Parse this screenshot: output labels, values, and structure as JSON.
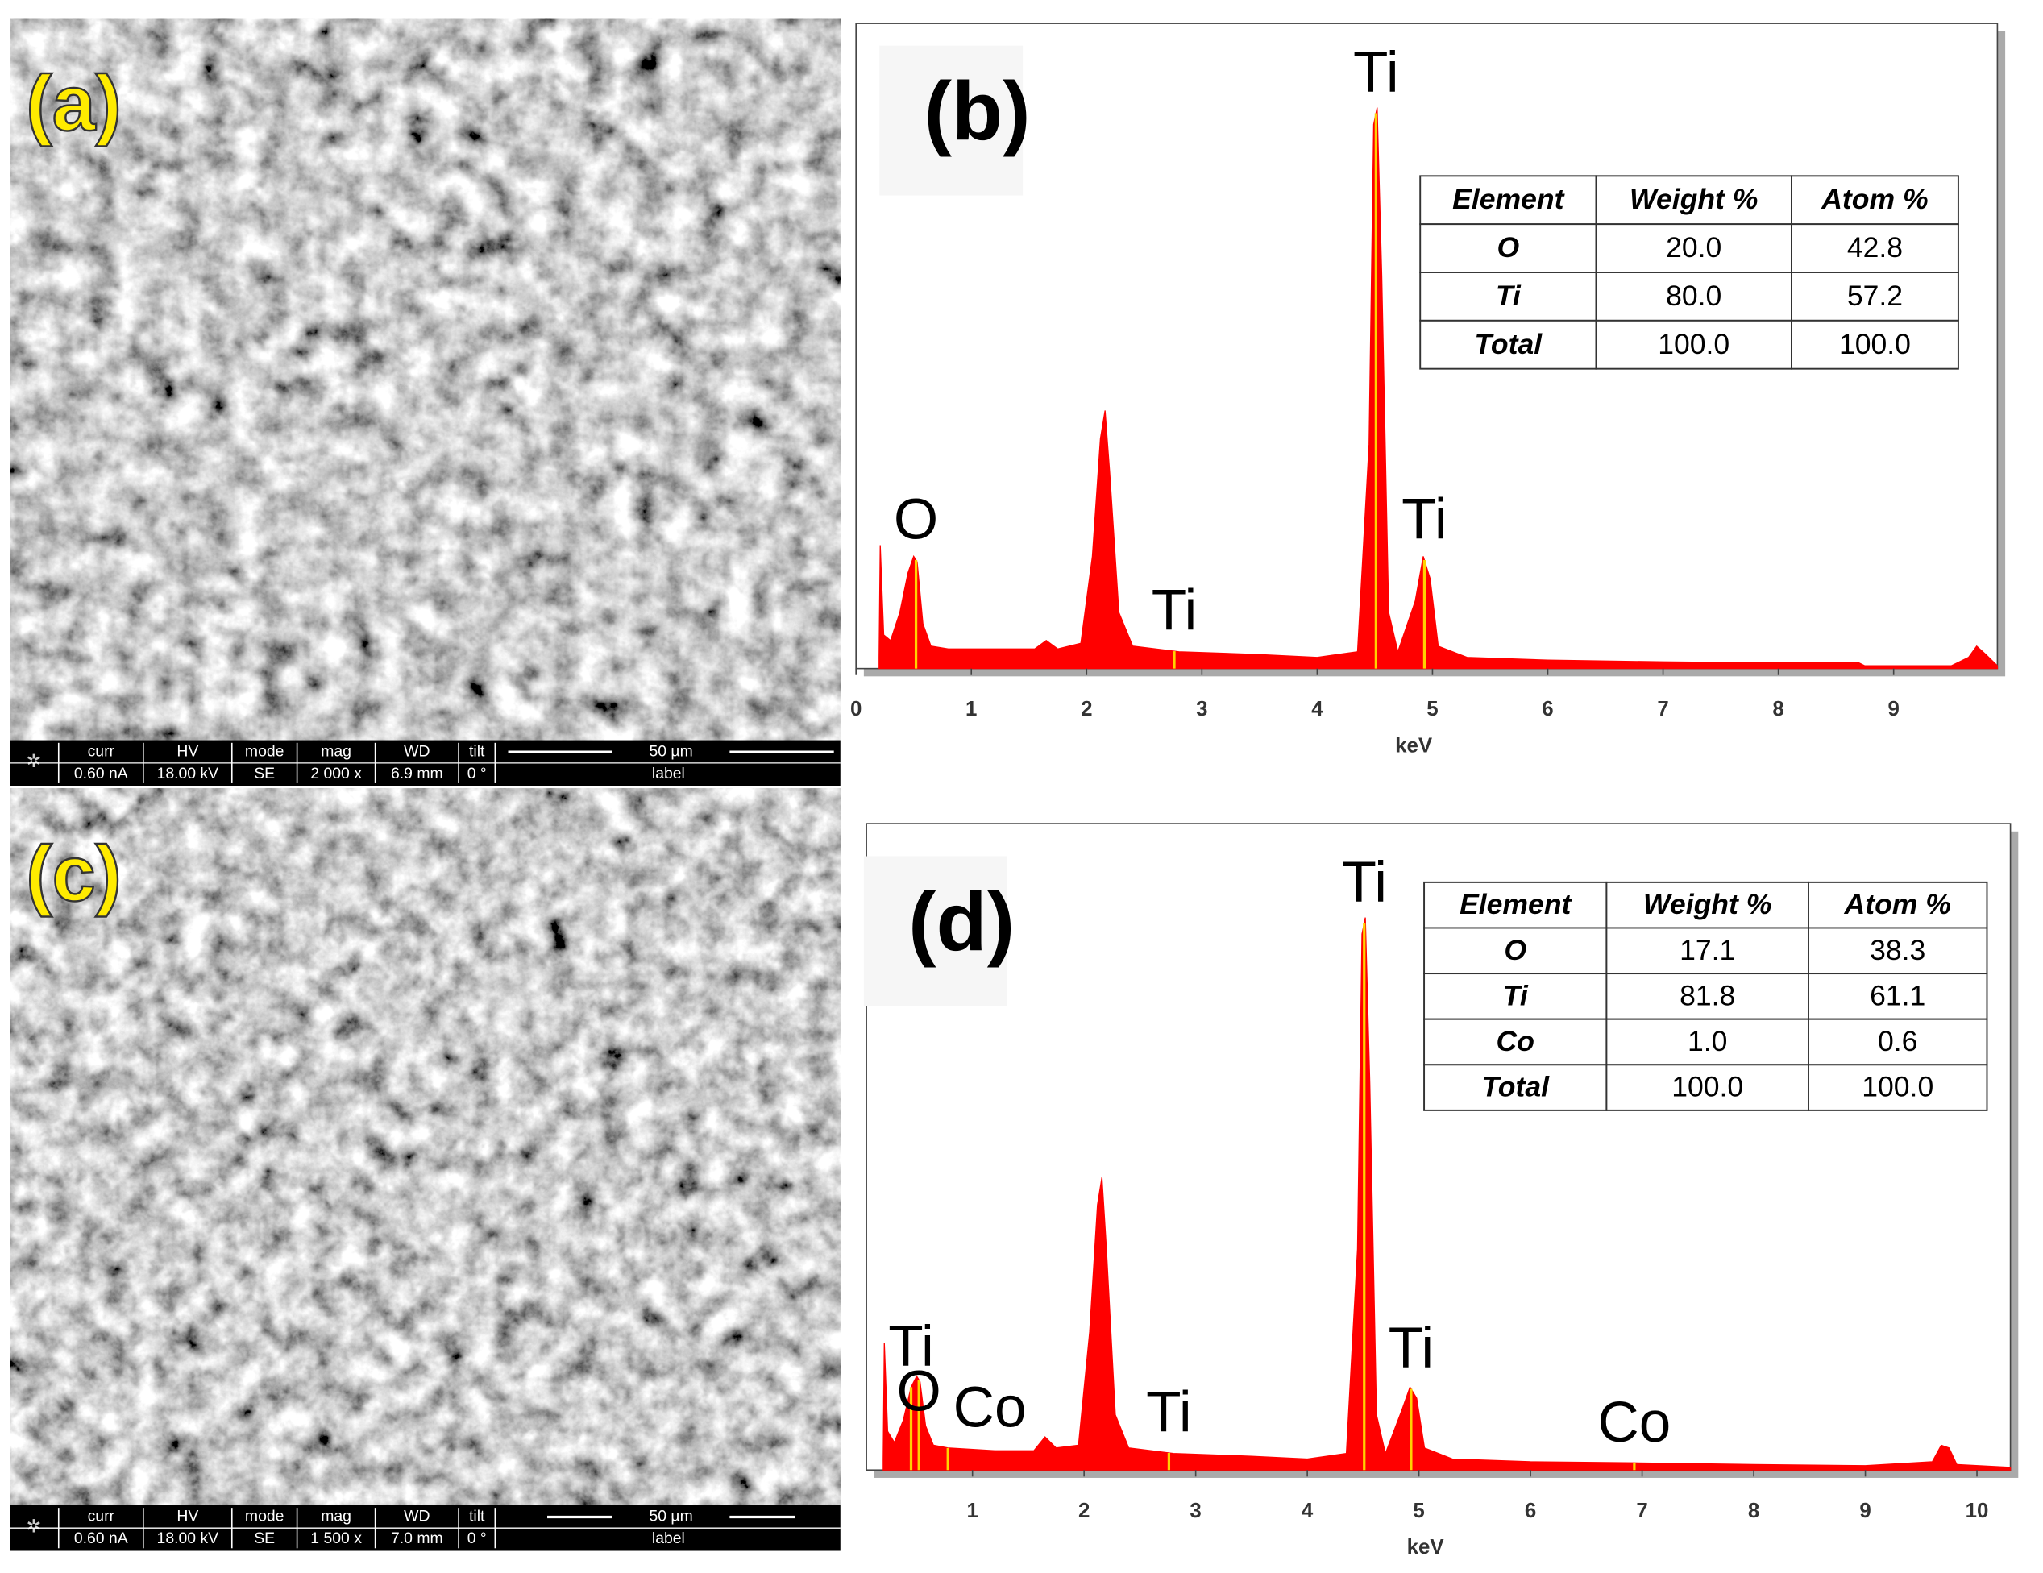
{
  "sem_panels": [
    {
      "label": "(a)",
      "info_headers": [
        "curr",
        "HV",
        "mode",
        "mag",
        "WD",
        "tilt"
      ],
      "info_values": [
        "0.60 nA",
        "18.00 kV",
        "SE",
        "2 000 x",
        "6.9 mm",
        "0 °"
      ],
      "scale_bar": "50 µm",
      "scale_caption": "label"
    },
    {
      "label": "(c)",
      "info_headers": [
        "curr",
        "HV",
        "mode",
        "mag",
        "WD",
        "tilt"
      ],
      "info_values": [
        "0.60 nA",
        "18.00 kV",
        "SE",
        "1 500 x",
        "7.0 mm",
        "0 °"
      ],
      "scale_bar": "50 µm",
      "scale_caption": "label"
    }
  ],
  "chart_data": [
    {
      "type": "area",
      "panel_label": "(b)",
      "xlabel": "keV",
      "color": "#ff0000",
      "xlim": [
        0,
        9.9
      ],
      "ylim": [
        0,
        115
      ],
      "xticks": [
        0,
        1,
        2,
        3,
        4,
        5,
        6,
        7,
        8,
        9
      ],
      "x": [
        0.2,
        0.21,
        0.24,
        0.3,
        0.38,
        0.45,
        0.5,
        0.53,
        0.58,
        0.65,
        0.8,
        1.2,
        1.55,
        1.65,
        1.75,
        1.95,
        2.05,
        2.12,
        2.16,
        2.2,
        2.28,
        2.4,
        2.8,
        3.5,
        4.0,
        4.35,
        4.45,
        4.49,
        4.52,
        4.56,
        4.62,
        4.7,
        4.85,
        4.92,
        4.98,
        5.05,
        5.3,
        6,
        7,
        8,
        8.7,
        8.75,
        9.5,
        9.65,
        9.72,
        9.8,
        9.9
      ],
      "values": [
        2,
        22,
        6,
        5,
        10,
        17,
        20,
        19,
        8,
        4,
        3.5,
        3.5,
        3.5,
        5,
        3.5,
        4.5,
        20,
        41,
        46,
        35,
        10,
        4,
        3,
        2.5,
        2,
        3,
        40,
        97,
        100,
        70,
        10,
        3,
        12,
        20,
        16,
        4,
        2,
        1.5,
        1.2,
        1,
        1,
        0.5,
        0.5,
        2,
        4,
        2.5,
        0.5
      ],
      "annotations": [
        {
          "label": "O",
          "x": 0.52
        },
        {
          "label": "Ti",
          "x": 2.76
        },
        {
          "label": "Ti",
          "x": 4.51
        },
        {
          "label": "Ti",
          "x": 4.93
        }
      ],
      "table": {
        "header": [
          "Element",
          "Weight %",
          "Atom %"
        ],
        "rows": [
          [
            "O",
            "20.0",
            "42.8"
          ],
          [
            "Ti",
            "80.0",
            "57.2"
          ],
          [
            "Total",
            "100.0",
            "100.0"
          ]
        ]
      }
    },
    {
      "type": "area",
      "panel_label": "(d)",
      "xlabel": "keV",
      "color": "#ff0000",
      "xlim": [
        0.05,
        10.3
      ],
      "ylim": [
        0,
        117
      ],
      "xticks": [
        1,
        2,
        3,
        4,
        5,
        6,
        7,
        8,
        9,
        10
      ],
      "x": [
        0.2,
        0.21,
        0.24,
        0.3,
        0.38,
        0.45,
        0.5,
        0.53,
        0.58,
        0.65,
        0.78,
        1.2,
        1.55,
        1.65,
        1.75,
        1.95,
        2.05,
        2.12,
        2.16,
        2.2,
        2.28,
        2.4,
        2.8,
        3.5,
        4.0,
        4.35,
        4.45,
        4.49,
        4.52,
        4.56,
        4.62,
        4.7,
        4.85,
        4.92,
        4.98,
        5.05,
        5.3,
        6,
        6.93,
        8,
        9,
        9.6,
        9.68,
        9.75,
        9.82,
        10.3
      ],
      "values": [
        2,
        23,
        7,
        5,
        9,
        15,
        17,
        16,
        8,
        4.5,
        4,
        3.5,
        3.5,
        6,
        4,
        4.5,
        25,
        48,
        53,
        40,
        10,
        4,
        3,
        2.5,
        2,
        3,
        40,
        97,
        100,
        70,
        10,
        3,
        11,
        15,
        13,
        4,
        2,
        1.5,
        1.3,
        1,
        0.8,
        1.5,
        4.5,
        4,
        1,
        0.5
      ],
      "annotations": [
        {
          "label": "Ti",
          "x": 0.45
        },
        {
          "label": "O",
          "x": 0.52
        },
        {
          "label": "Co",
          "x": 0.78
        },
        {
          "label": "Ti",
          "x": 2.76
        },
        {
          "label": "Ti",
          "x": 4.51
        },
        {
          "label": "Ti",
          "x": 4.93
        },
        {
          "label": "Co",
          "x": 6.93
        }
      ],
      "table": {
        "header": [
          "Element",
          "Weight %",
          "Atom %"
        ],
        "rows": [
          [
            "O",
            "17.1",
            "38.3"
          ],
          [
            "Ti",
            "81.8",
            "61.1"
          ],
          [
            "Co",
            "1.0",
            "0.6"
          ],
          [
            "Total",
            "100.0",
            "100.0"
          ]
        ]
      }
    }
  ]
}
